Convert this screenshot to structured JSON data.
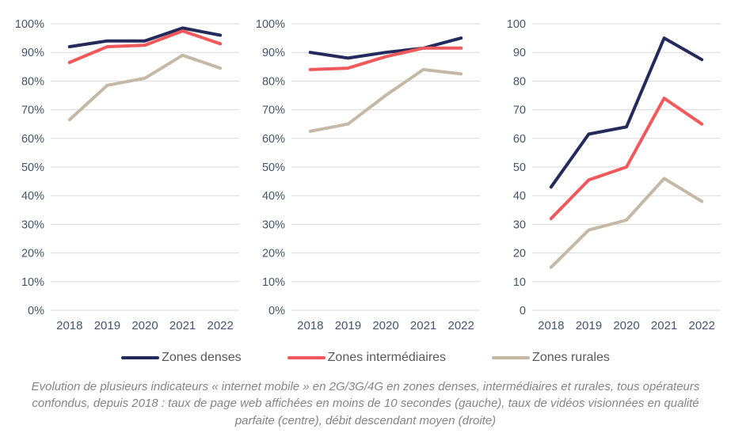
{
  "colors": {
    "background": "#ffffff",
    "axis_label": "#44546a",
    "gridline": "#d9d9d9",
    "legend_text": "#595959",
    "caption_text": "#848484"
  },
  "legend": {
    "items": [
      {
        "label": "Zones denses",
        "color": "#242a5c"
      },
      {
        "label": "Zones intermédiaires",
        "color": "#f0595c"
      },
      {
        "label": "Zones rurales",
        "color": "#c4b9a7"
      }
    ]
  },
  "caption": {
    "text": "Evolution de plusieurs indicateurs « internet mobile » en 2G/3G/4G en zones denses, intermédiaires et rurales, tous opérateurs confondus, depuis 2018 : taux de page web affichées en moins de 10 secondes (gauche), taux de vidéos visionnées en qualité parfaite (centre), débit descendant moyen (droite)"
  },
  "chart_data": [
    {
      "type": "line",
      "position": "left",
      "categories": [
        "2018",
        "2019",
        "2020",
        "2021",
        "2022"
      ],
      "series": [
        {
          "name": "Zones denses",
          "color": "#242a5c",
          "values": [
            92,
            94,
            94,
            98.5,
            96
          ]
        },
        {
          "name": "Zones intermédiaires",
          "color": "#f0595c",
          "values": [
            86.5,
            92,
            92.5,
            97.5,
            93
          ]
        },
        {
          "name": "Zones rurales",
          "color": "#c4b9a7",
          "values": [
            66.5,
            78.5,
            81,
            89,
            84.5
          ]
        }
      ],
      "ylim": [
        0,
        100
      ],
      "ytick_step": 10,
      "y_suffix": "%",
      "grid": true,
      "legend_position": "shared-bottom"
    },
    {
      "type": "line",
      "position": "center",
      "categories": [
        "2018",
        "2019",
        "2020",
        "2021",
        "2022"
      ],
      "series": [
        {
          "name": "Zones denses",
          "color": "#242a5c",
          "values": [
            90,
            88,
            90,
            91.5,
            95
          ]
        },
        {
          "name": "Zones intermédiaires",
          "color": "#f0595c",
          "values": [
            84,
            84.5,
            88.5,
            91.5,
            91.5
          ]
        },
        {
          "name": "Zones rurales",
          "color": "#c4b9a7",
          "values": [
            62.5,
            65,
            75,
            84,
            82.5
          ]
        }
      ],
      "ylim": [
        0,
        100
      ],
      "ytick_step": 10,
      "y_suffix": "%",
      "grid": true,
      "legend_position": "shared-bottom"
    },
    {
      "type": "line",
      "position": "right",
      "categories": [
        "2018",
        "2019",
        "2020",
        "2021",
        "2022"
      ],
      "series": [
        {
          "name": "Zones denses",
          "color": "#242a5c",
          "values": [
            43,
            61.5,
            64,
            95,
            87.5
          ]
        },
        {
          "name": "Zones intermédiaires",
          "color": "#f0595c",
          "values": [
            32,
            45.5,
            50,
            74,
            65
          ]
        },
        {
          "name": "Zones rurales",
          "color": "#c4b9a7",
          "values": [
            15,
            28,
            31.5,
            46,
            38
          ]
        }
      ],
      "ylim": [
        0,
        100
      ],
      "ytick_step": 10,
      "y_suffix": "",
      "grid": true,
      "legend_position": "shared-bottom"
    }
  ]
}
